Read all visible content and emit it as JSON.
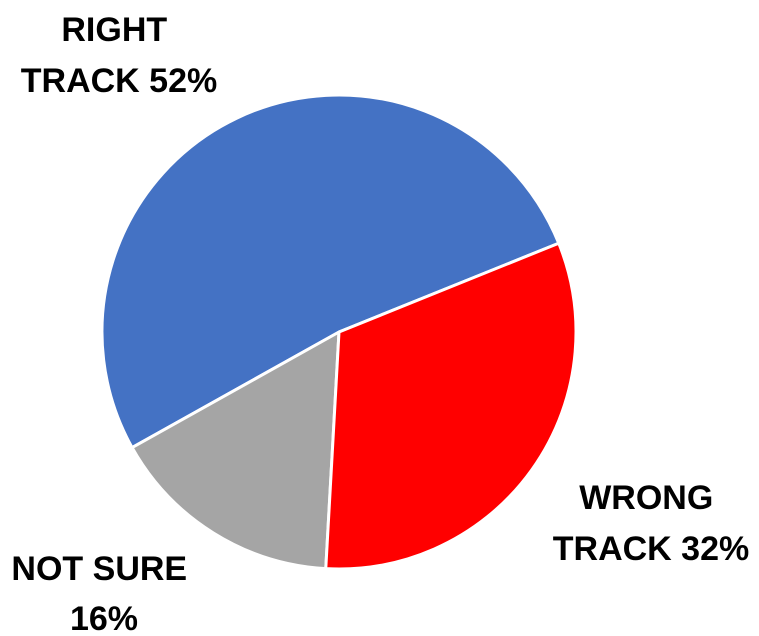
{
  "chart_data": {
    "type": "pie",
    "start_angle_deg": 22,
    "direction": "counterclockwise",
    "slices": [
      {
        "name": "RIGHT TRACK",
        "value": 52,
        "color": "#4472C4",
        "label_line1": "RIGHT",
        "label_line2": "TRACK 52%"
      },
      {
        "name": "NOT SURE",
        "value": 16,
        "color": "#A5A5A5",
        "label_line1": "NOT SURE",
        "label_line2": "16%"
      },
      {
        "name": "WRONG TRACK",
        "value": 32,
        "color": "#FF0000",
        "label_line1": "WRONG",
        "label_line2": "TRACK 32%"
      }
    ]
  }
}
